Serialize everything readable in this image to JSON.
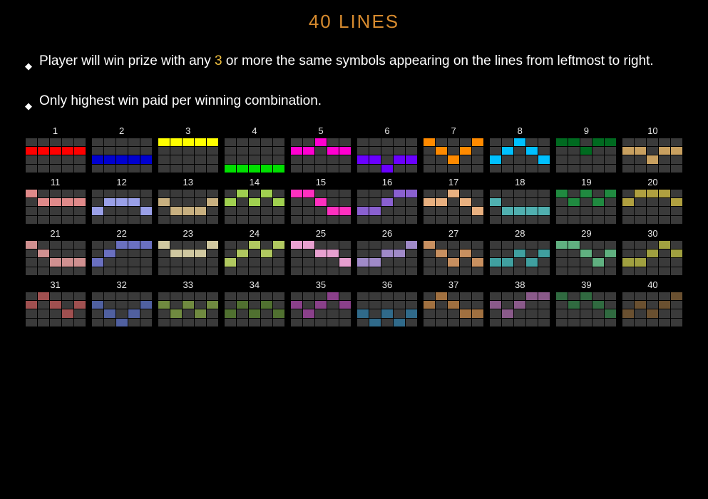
{
  "title": {
    "text": "40 LINES",
    "color": "#d68a2e"
  },
  "rules": [
    {
      "pre": "Player will win prize with any ",
      "hl": "3",
      "hl_color": "#f0c040",
      "post": " or more the same symbols appearing on the lines from leftmost to right."
    },
    {
      "pre": "Only highest win paid per winning combination.",
      "hl": "",
      "hl_color": "",
      "post": ""
    }
  ],
  "grid": {
    "cols": 5,
    "rows": 4,
    "empty_cell_color": "#3a3a3a",
    "lines": [
      {
        "n": 1,
        "color": "#ff0000",
        "path": [
          1,
          1,
          1,
          1,
          1
        ]
      },
      {
        "n": 2,
        "color": "#0000d0",
        "path": [
          2,
          2,
          2,
          2,
          2
        ]
      },
      {
        "n": 3,
        "color": "#ffff00",
        "path": [
          0,
          0,
          0,
          0,
          0
        ]
      },
      {
        "n": 4,
        "color": "#00e000",
        "path": [
          3,
          3,
          3,
          3,
          3
        ]
      },
      {
        "n": 5,
        "color": "#ff00d0",
        "path": [
          1,
          1,
          0,
          1,
          1
        ]
      },
      {
        "n": 6,
        "color": "#6a00ff",
        "path": [
          2,
          2,
          3,
          2,
          2
        ]
      },
      {
        "n": 7,
        "color": "#ff8a00",
        "path": [
          0,
          1,
          2,
          1,
          0
        ]
      },
      {
        "n": 8,
        "color": "#00c0ff",
        "path": [
          2,
          1,
          0,
          1,
          2
        ]
      },
      {
        "n": 9,
        "color": "#006a20",
        "path": [
          0,
          0,
          1,
          0,
          0
        ]
      },
      {
        "n": 10,
        "color": "#c8a060",
        "path": [
          1,
          1,
          2,
          1,
          1
        ]
      },
      {
        "n": 11,
        "color": "#e08a8a",
        "path": [
          0,
          1,
          1,
          1,
          1
        ]
      },
      {
        "n": 12,
        "color": "#9aa0e8",
        "path": [
          2,
          1,
          1,
          1,
          2
        ]
      },
      {
        "n": 13,
        "color": "#c8b080",
        "path": [
          1,
          2,
          2,
          2,
          1
        ]
      },
      {
        "n": 14,
        "color": "#a0d050",
        "path": [
          1,
          0,
          1,
          0,
          1
        ]
      },
      {
        "n": 15,
        "color": "#ff30c0",
        "path": [
          0,
          0,
          1,
          2,
          2
        ]
      },
      {
        "n": 16,
        "color": "#8a60d0",
        "path": [
          2,
          2,
          1,
          0,
          0
        ]
      },
      {
        "n": 17,
        "color": "#e8b080",
        "path": [
          1,
          1,
          0,
          1,
          2
        ]
      },
      {
        "n": 18,
        "color": "#50b0b0",
        "path": [
          1,
          2,
          2,
          2,
          2
        ]
      },
      {
        "n": 19,
        "color": "#208a40",
        "path": [
          0,
          1,
          0,
          1,
          0
        ]
      },
      {
        "n": 20,
        "color": "#b0a040",
        "path": [
          1,
          0,
          0,
          0,
          1
        ]
      },
      {
        "n": 21,
        "color": "#d09090",
        "path": [
          0,
          1,
          2,
          2,
          2
        ]
      },
      {
        "n": 22,
        "color": "#6a70c0",
        "path": [
          2,
          1,
          0,
          0,
          0
        ]
      },
      {
        "n": 23,
        "color": "#d0c8a0",
        "path": [
          0,
          1,
          1,
          1,
          0
        ]
      },
      {
        "n": 24,
        "color": "#b0c860",
        "path": [
          2,
          1,
          0,
          1,
          0
        ]
      },
      {
        "n": 25,
        "color": "#e8a0d0",
        "path": [
          0,
          0,
          1,
          1,
          2
        ]
      },
      {
        "n": 26,
        "color": "#a08ac8",
        "path": [
          2,
          2,
          1,
          1,
          0
        ]
      },
      {
        "n": 27,
        "color": "#c89060",
        "path": [
          0,
          1,
          2,
          1,
          2
        ]
      },
      {
        "n": 28,
        "color": "#40a0a0",
        "path": [
          2,
          2,
          1,
          2,
          1
        ]
      },
      {
        "n": 29,
        "color": "#60b080",
        "path": [
          0,
          0,
          1,
          2,
          1
        ]
      },
      {
        "n": 30,
        "color": "#a0a040",
        "path": [
          2,
          2,
          1,
          0,
          1
        ]
      },
      {
        "n": 31,
        "color": "#a05050",
        "path": [
          1,
          0,
          1,
          2,
          1
        ]
      },
      {
        "n": 32,
        "color": "#5060a0",
        "path": [
          1,
          2,
          3,
          2,
          1
        ]
      },
      {
        "n": 33,
        "color": "#708a40",
        "path": [
          1,
          2,
          1,
          2,
          1
        ]
      },
      {
        "n": 34,
        "color": "#507030",
        "path": [
          2,
          1,
          2,
          1,
          2
        ]
      },
      {
        "n": 35,
        "color": "#8a408a",
        "path": [
          1,
          2,
          1,
          0,
          1
        ]
      },
      {
        "n": 36,
        "color": "#306a8a",
        "path": [
          2,
          3,
          2,
          3,
          2
        ]
      },
      {
        "n": 37,
        "color": "#a07040",
        "path": [
          1,
          0,
          1,
          2,
          2
        ]
      },
      {
        "n": 38,
        "color": "#8a5a8a",
        "path": [
          1,
          2,
          1,
          0,
          0
        ]
      },
      {
        "n": 39,
        "color": "#306a40",
        "path": [
          0,
          1,
          0,
          1,
          2
        ]
      },
      {
        "n": 40,
        "color": "#6a5030",
        "path": [
          2,
          1,
          2,
          1,
          0
        ]
      }
    ]
  }
}
